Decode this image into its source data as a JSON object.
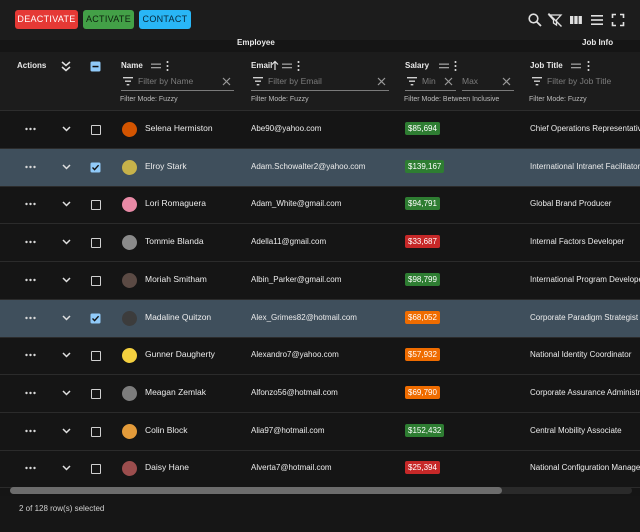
{
  "toolbar": {
    "deactivate": "DEACTIVATE",
    "activate": "ACTIVATE",
    "contact": "CONTACT",
    "icons": [
      "search-icon",
      "filter-off-icon",
      "view-columns-icon",
      "density-icon",
      "fullscreen-icon"
    ]
  },
  "groups": {
    "employee": "Employee",
    "job": "Job Info"
  },
  "columns": {
    "actions": "Actions",
    "name": {
      "label": "Name",
      "placeholder": "Filter by Name",
      "mode": "Filter Mode: Fuzzy"
    },
    "email": {
      "label": "Email",
      "placeholder": "Filter by Email",
      "mode": "Filter Mode: Fuzzy"
    },
    "salary": {
      "label": "Salary",
      "min": "Min",
      "max": "Max",
      "mode": "Filter Mode: Between Inclusive"
    },
    "job": {
      "label": "Job Title",
      "placeholder": "Filter by Job Title",
      "mode": "Filter Mode: Fuzzy"
    }
  },
  "colors": {
    "green": "#2e7d32",
    "red": "#c62828",
    "orange": "#ef6c00",
    "selected_row": "#3f4f5c",
    "checkbox": "#90caf9"
  },
  "rows": [
    {
      "name": "Selena Hermiston",
      "email": "Abe90@yahoo.com",
      "salary": "$85,694",
      "salary_color": "green",
      "job": "Chief Operations Representative",
      "selected": false,
      "avatar": "#d35400"
    },
    {
      "name": "Elroy Stark",
      "email": "Adam.Schowalter2@yahoo.com",
      "salary": "$139,167",
      "salary_color": "green",
      "job": "International Intranet Facilitator",
      "selected": true,
      "avatar": "#c7b24a"
    },
    {
      "name": "Lori Romaguera",
      "email": "Adam_White@gmail.com",
      "salary": "$94,791",
      "salary_color": "green",
      "job": "Global Brand Producer",
      "selected": false,
      "avatar": "#e88aa6"
    },
    {
      "name": "Tommie Blanda",
      "email": "Adella11@gmail.com",
      "salary": "$33,687",
      "salary_color": "red",
      "job": "Internal Factors Developer",
      "selected": false,
      "avatar": "#8a8a8a"
    },
    {
      "name": "Moriah Smitham",
      "email": "Albin_Parker@gmail.com",
      "salary": "$98,799",
      "salary_color": "green",
      "job": "International Program Developer",
      "selected": false,
      "avatar": "#5b4a44"
    },
    {
      "name": "Madaline Quitzon",
      "email": "Alex_Grimes82@hotmail.com",
      "salary": "$68,052",
      "salary_color": "orange",
      "job": "Corporate Paradigm Strategist",
      "selected": true,
      "avatar": "#3c3c3c"
    },
    {
      "name": "Gunner Daugherty",
      "email": "Alexandro7@yahoo.com",
      "salary": "$57,932",
      "salary_color": "orange",
      "job": "National Identity Coordinator",
      "selected": false,
      "avatar": "#f4d03f"
    },
    {
      "name": "Meagan Zemlak",
      "email": "Alfonzo56@hotmail.com",
      "salary": "$69,790",
      "salary_color": "orange",
      "job": "Corporate Assurance Administrator",
      "selected": false,
      "avatar": "#7d7d7d"
    },
    {
      "name": "Colin Block",
      "email": "Alia97@hotmail.com",
      "salary": "$152,432",
      "salary_color": "green",
      "job": "Central Mobility Associate",
      "selected": false,
      "avatar": "#e39b3a"
    },
    {
      "name": "Daisy Hane",
      "email": "Alverta7@hotmail.com",
      "salary": "$25,394",
      "salary_color": "red",
      "job": "National Configuration Manager",
      "selected": false,
      "avatar": "#9b4d4d"
    }
  ],
  "footer": {
    "selected_text": "2 of 128 row(s) selected"
  }
}
